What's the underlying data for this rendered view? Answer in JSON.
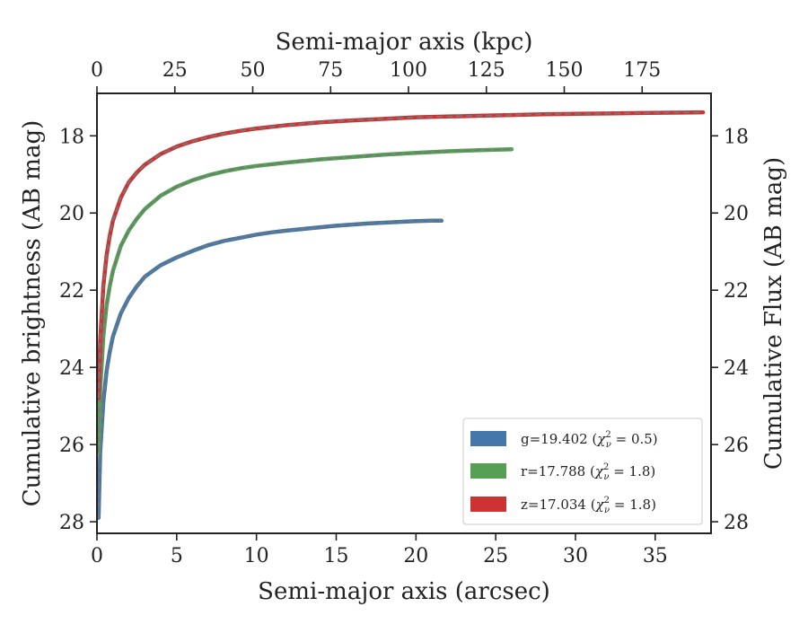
{
  "chart_data": {
    "type": "line",
    "xlabel": "Semi-major axis (arcsec)",
    "ylabel": "Cumulative brightness (AB mag)",
    "x2label": "Semi-major axis (kpc)",
    "y2label": "Cumulative Flux (AB mag)",
    "xlim": [
      0,
      38.5
    ],
    "ylim": [
      28.3,
      16.9
    ],
    "y_inverted": true,
    "x_ticks": [
      0,
      5,
      10,
      15,
      20,
      25,
      30,
      35
    ],
    "x_tick_labels": [
      "0",
      "5",
      "10",
      "15",
      "20",
      "25",
      "30",
      "35"
    ],
    "y_ticks": [
      18,
      20,
      22,
      24,
      26,
      28
    ],
    "y_tick_labels": [
      "18",
      "20",
      "22",
      "24",
      "26",
      "28"
    ],
    "x2_ticks": [
      0,
      25,
      50,
      75,
      100,
      125,
      150,
      175
    ],
    "x2_tick_labels": [
      "0",
      "25",
      "50",
      "75",
      "100",
      "125",
      "150",
      "175"
    ],
    "x2_per_x1": 5.12,
    "grid": false,
    "legend_position": "lower-right",
    "series": [
      {
        "name": "g=19.402 ($\\chi^2_\\nu = 0.5$)",
        "legend_prefix": "g=19.402 (",
        "legend_chi": "χ",
        "legend_sup": "2",
        "legend_sub": "ν",
        "legend_suffix": " = 0.5)",
        "color": "#4477aa",
        "x": [
          0.1,
          0.2,
          0.4,
          0.6,
          0.8,
          1.0,
          1.5,
          2.0,
          2.5,
          3.0,
          3.5,
          4.0,
          5.0,
          6.0,
          7.0,
          8.0,
          9.0,
          10.0,
          11.0,
          12.0,
          13.0,
          14.0,
          15.0,
          16.0,
          17.0,
          18.0,
          19.0,
          20.0,
          21.0,
          21.6
        ],
        "y": [
          27.9,
          26.2,
          24.9,
          24.1,
          23.6,
          23.2,
          22.6,
          22.2,
          21.9,
          21.65,
          21.5,
          21.35,
          21.15,
          20.98,
          20.83,
          20.72,
          20.64,
          20.56,
          20.5,
          20.45,
          20.41,
          20.37,
          20.33,
          20.3,
          20.27,
          20.25,
          20.23,
          20.21,
          20.2,
          20.2
        ]
      },
      {
        "name": "r=17.788 ($\\chi^2_\\nu = 1.8$)",
        "legend_prefix": "r=17.788 (",
        "legend_chi": "χ",
        "legend_sup": "2",
        "legend_sub": "ν",
        "legend_suffix": " = 1.8)",
        "color": "#55a055",
        "x": [
          0.1,
          0.2,
          0.4,
          0.6,
          0.8,
          1.0,
          1.5,
          2.0,
          2.5,
          3.0,
          4.0,
          5.0,
          6.0,
          7.0,
          8.0,
          9.0,
          10.0,
          12.0,
          14.0,
          16.0,
          18.0,
          20.0,
          22.0,
          24.0,
          26.0
        ],
        "y": [
          26.2,
          24.6,
          23.2,
          22.4,
          21.9,
          21.5,
          20.85,
          20.45,
          20.15,
          19.9,
          19.55,
          19.32,
          19.15,
          19.02,
          18.92,
          18.84,
          18.78,
          18.69,
          18.61,
          18.55,
          18.49,
          18.44,
          18.4,
          18.37,
          18.35
        ]
      },
      {
        "name": "z=17.034 ($\\chi^2_\\nu = 1.8$)",
        "legend_prefix": "z=17.034 (",
        "legend_chi": "χ",
        "legend_sup": "2",
        "legend_sub": "ν",
        "legend_suffix": " = 1.8)",
        "color": "#cc3333",
        "x": [
          0.1,
          0.2,
          0.4,
          0.6,
          0.8,
          1.0,
          1.5,
          2.0,
          2.5,
          3.0,
          4.0,
          5.0,
          6.0,
          7.0,
          8.0,
          9.0,
          10.0,
          12.0,
          14.0,
          16.0,
          18.0,
          20.0,
          22.0,
          24.0,
          26.0,
          28.0,
          30.0,
          32.0,
          34.0,
          36.0,
          38.0
        ],
        "y": [
          24.8,
          23.3,
          21.9,
          21.1,
          20.6,
          20.2,
          19.6,
          19.2,
          18.95,
          18.75,
          18.47,
          18.28,
          18.14,
          18.03,
          17.94,
          17.87,
          17.81,
          17.72,
          17.65,
          17.6,
          17.56,
          17.52,
          17.5,
          17.48,
          17.46,
          17.44,
          17.43,
          17.42,
          17.41,
          17.4,
          17.39
        ]
      }
    ],
    "model_line_color": "#777777"
  }
}
